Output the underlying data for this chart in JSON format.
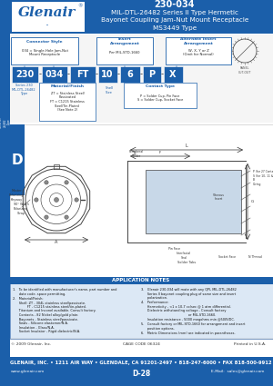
{
  "title_line1": "230-034",
  "title_line2": "MIL-DTL-26482 Series II Type Hermetic",
  "title_line3": "Bayonet Coupling Jam-Nut Mount Receptacle",
  "title_line4": "MS3449 Type",
  "header_bg": "#1b5faa",
  "header_text_color": "#ffffff",
  "box_bg": "#1b5faa",
  "box_text_color": "#ffffff",
  "label_color": "#1b5faa",
  "body_bg": "#ffffff",
  "part_number_blocks": [
    "230",
    "034",
    "FT",
    "10",
    "6",
    "P",
    "X"
  ],
  "connector_style_label": "Connector Style",
  "connector_style_val": "034 = Single-Hole Jam-Nut\nMount Receptacle",
  "insert_label": "Insert\nArrangement",
  "insert_val": "Per MIL-STD-1660",
  "alt_insert_label": "Alternate Insert\nArrangement",
  "alt_insert_val": "W, X, Y or Z\n(Omit for Normal)",
  "material_label": "Material/Finish",
  "material_val": "ZT = Stainless Steel/\nPassivated\nFT = C1215 Stainless\nSteel/Tin-Plated\n(See Note 2)",
  "contact_label": "Contact Type",
  "contact_val": "P = Solder Cup, Pin Face\nS = Solder Cup, Socket Face",
  "note_title": "APPLICATION NOTES",
  "note1_left": "1.   To be identified with manufacturer's name, part number and\n      date code, space permitting.",
  "note2_left": "2.   Material/Finish:\n      Shell: ZT - 304L stainless steel/passivate.\n              FT - C1215 stainless steel/tin-plated.\n      Titanium and Inconel available. Consult factory.\n      Contacts - 82 Nickel alloy/gold plate.\n      Bayonets - Stainless steel/passivate.\n      Seals - Silicone elastomer/N.A.\n      Insulation - Glass/N.A.\n      Socket Insulator - Rigid dielectric/N.A.",
  "note3_right": "3.   Glenair 230-034 will mate with any QPL MIL-DTL-26482\n      Series II bayonet coupling plug of same size and insert\n      polarization.",
  "note4_right": "4.   Performance:\n      Hermeticity - <1 x 10-7 cc/sec @ 1 atm differential.\n      Dielectric withstanding voltage - Consult factory\n                                              or MIL-STD-1660.\n      Insulation resistance - 5000 megohms min @500VDC.",
  "note5_right": "5.   Consult factory or MIL-STD-1660 for arrangement and insert\n      position options.",
  "note6_right": "6.   Metric Dimensions (mm) are indicated in parentheses.",
  "footer_copy": "© 2009 Glenair, Inc.",
  "footer_cage": "CAGE CODE 06324",
  "footer_printed": "Printed in U.S.A.",
  "footer_addr": "GLENAIR, INC. • 1211 AIR WAY • GLENDALE, CA 91201-2497 • 818-247-6000 • FAX 818-500-9912",
  "footer_web": "www.glenair.com",
  "footer_part": "D-28",
  "footer_email": "E-Mail:  sales@glenair.com",
  "footer_bg": "#1b5faa",
  "notes_box_bg": "#dce8f5",
  "notes_hdr_bg": "#1b5faa"
}
